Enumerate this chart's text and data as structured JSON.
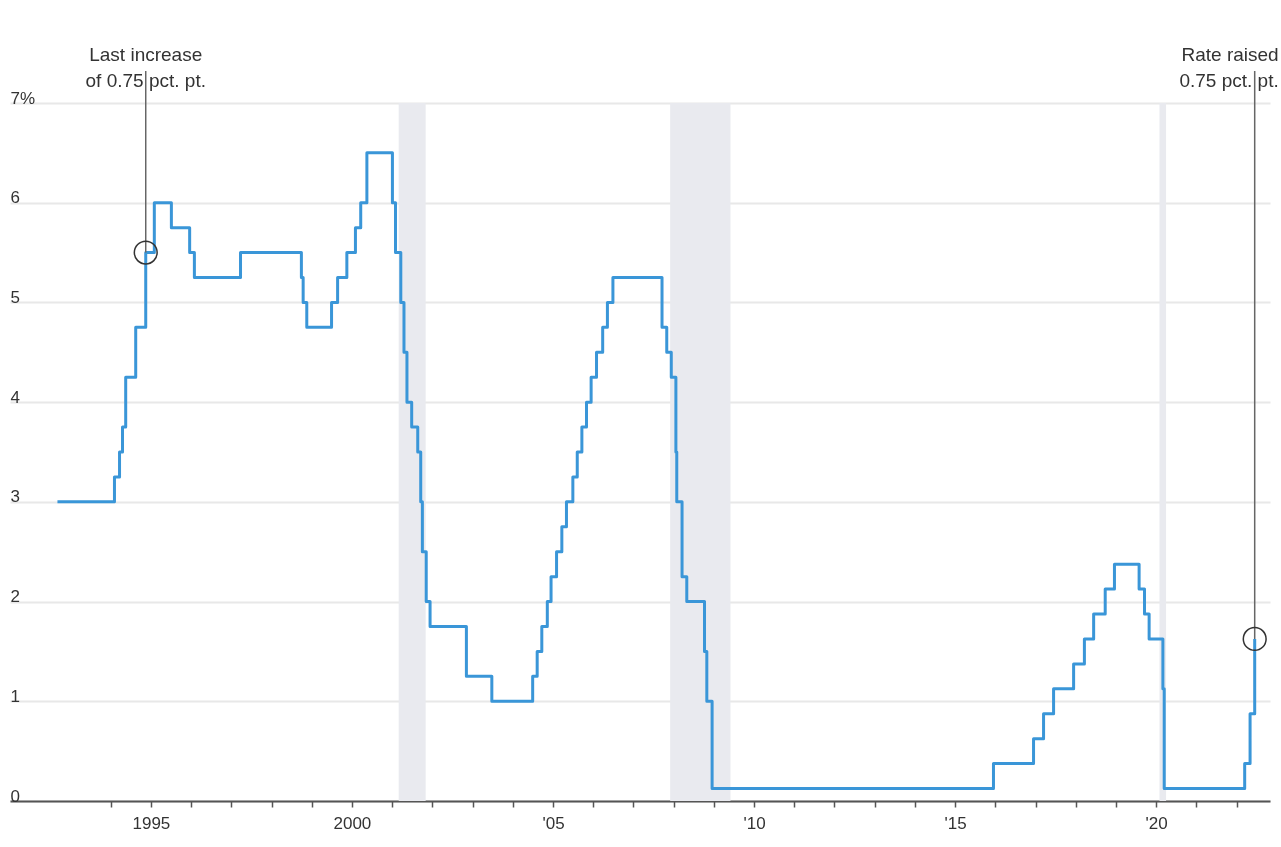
{
  "chart_data": {
    "type": "step",
    "x": [
      "1992-09-04",
      "1994-02-04",
      "1994-03-22",
      "1994-04-18",
      "1994-05-17",
      "1994-08-16",
      "1994-11-15",
      "1995-02-01",
      "1995-07-06",
      "1995-12-19",
      "1996-01-31",
      "1997-03-25",
      "1998-09-29",
      "1998-10-15",
      "1998-11-17",
      "1999-06-30",
      "1999-08-24",
      "1999-11-16",
      "2000-02-02",
      "2000-03-21",
      "2000-05-16",
      "2001-01-03",
      "2001-01-31",
      "2001-03-20",
      "2001-04-18",
      "2001-05-15",
      "2001-06-27",
      "2001-08-21",
      "2001-09-17",
      "2001-10-02",
      "2001-11-06",
      "2001-12-11",
      "2002-11-06",
      "2003-06-25",
      "2004-06-30",
      "2004-08-10",
      "2004-09-21",
      "2004-11-10",
      "2004-12-14",
      "2005-02-02",
      "2005-03-22",
      "2005-05-03",
      "2005-06-30",
      "2005-08-09",
      "2005-09-20",
      "2005-11-01",
      "2005-12-13",
      "2006-01-31",
      "2006-03-28",
      "2006-05-10",
      "2006-06-29",
      "2007-09-18",
      "2007-10-31",
      "2007-12-11",
      "2008-01-22",
      "2008-01-30",
      "2008-03-18",
      "2008-04-30",
      "2008-10-08",
      "2008-10-29",
      "2008-12-16",
      "2015-12-16",
      "2016-12-14",
      "2017-03-15",
      "2017-06-14",
      "2017-12-13",
      "2018-03-21",
      "2018-06-13",
      "2018-09-26",
      "2018-12-19",
      "2019-07-31",
      "2019-09-18",
      "2019-10-30",
      "2020-03-03",
      "2020-03-15",
      "2022-03-16",
      "2022-05-04",
      "2022-06-15"
    ],
    "series": [
      {
        "color": "#3a96d8",
        "values": [
          3.0,
          3.25,
          3.5,
          3.75,
          4.25,
          4.75,
          5.5,
          6.0,
          5.75,
          5.5,
          5.25,
          5.5,
          5.25,
          5.0,
          4.75,
          5.0,
          5.25,
          5.5,
          5.75,
          6.0,
          6.5,
          6.0,
          5.5,
          5.0,
          4.5,
          4.0,
          3.75,
          3.5,
          3.0,
          2.5,
          2.0,
          1.75,
          1.25,
          1.0,
          1.25,
          1.5,
          1.75,
          2.0,
          2.25,
          2.5,
          2.75,
          3.0,
          3.25,
          3.5,
          3.75,
          4.0,
          4.25,
          4.5,
          4.75,
          5.0,
          5.25,
          4.75,
          4.5,
          4.25,
          3.5,
          3.0,
          2.25,
          2.0,
          1.5,
          1.0,
          0.125,
          0.375,
          0.625,
          0.875,
          1.125,
          1.375,
          1.625,
          1.875,
          2.125,
          2.375,
          2.125,
          1.875,
          1.625,
          1.125,
          0.125,
          0.375,
          0.875,
          1.625
        ]
      }
    ],
    "xlim": [
      "1991-07",
      "2022-11"
    ],
    "xticks": [
      {
        "value": "1994",
        "label": null
      },
      {
        "value": "1995",
        "label": "1995"
      },
      {
        "value": "1996",
        "label": null
      },
      {
        "value": "1997",
        "label": null
      },
      {
        "value": "1998",
        "label": null
      },
      {
        "value": "1999",
        "label": null
      },
      {
        "value": "2000",
        "label": "2000"
      },
      {
        "value": "2001",
        "label": null
      },
      {
        "value": "2002",
        "label": null
      },
      {
        "value": "2003",
        "label": null
      },
      {
        "value": "2004",
        "label": null
      },
      {
        "value": "2005",
        "label": "'05"
      },
      {
        "value": "2006",
        "label": null
      },
      {
        "value": "2007",
        "label": null
      },
      {
        "value": "2008",
        "label": null
      },
      {
        "value": "2009",
        "label": null
      },
      {
        "value": "2010",
        "label": "'10"
      },
      {
        "value": "2011",
        "label": null
      },
      {
        "value": "2012",
        "label": null
      },
      {
        "value": "2013",
        "label": null
      },
      {
        "value": "2014",
        "label": null
      },
      {
        "value": "2015",
        "label": "'15"
      },
      {
        "value": "2016",
        "label": null
      },
      {
        "value": "2017",
        "label": null
      },
      {
        "value": "2018",
        "label": null
      },
      {
        "value": "2019",
        "label": null
      },
      {
        "value": "2020",
        "label": "'20"
      },
      {
        "value": "2021",
        "label": null
      },
      {
        "value": "2022",
        "label": null
      }
    ],
    "ylim": [
      0,
      7
    ],
    "yticks": [
      0,
      1,
      2,
      3,
      4,
      5,
      6,
      {
        "value": 7,
        "label": "7%"
      }
    ],
    "grid": "y",
    "line_style": "solid",
    "bands": [
      {
        "axis": "x",
        "from": "2001-03",
        "to": "2001-11",
        "color": "#e9eaef"
      },
      {
        "axis": "x",
        "from": "2007-12",
        "to": "2009-06",
        "color": "#e9eaef"
      },
      {
        "axis": "x",
        "from": "2020-02",
        "to": "2020-04",
        "color": "#e9eaef"
      }
    ],
    "annotations": [
      {
        "text": "Last increase\nof 0.75 pct. pt.",
        "x": "1994-11-15",
        "y": 5.5
      },
      {
        "text": "Rate raised\n0.75 pct. pt.",
        "x": "2022-06-15",
        "y": 1.625
      }
    ]
  }
}
